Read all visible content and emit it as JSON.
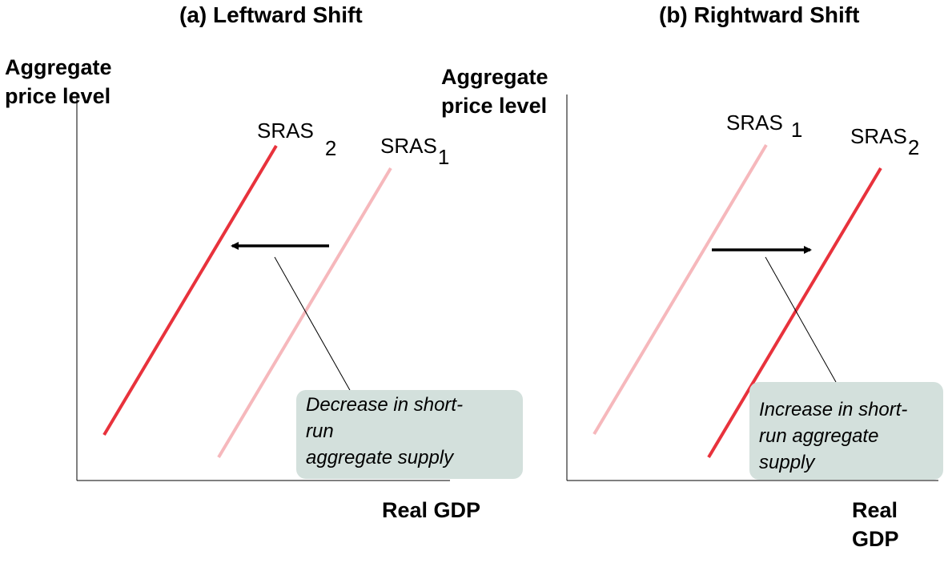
{
  "panels": [
    {
      "title": "(a) Leftward Shift",
      "y_axis_label": [
        "Aggregate",
        "price level"
      ],
      "x_axis_label": [
        "Real GDP"
      ],
      "curves": [
        {
          "label": "SRAS",
          "subscript": "2",
          "color": "#e8323c",
          "style": "dark"
        },
        {
          "label": "SRAS",
          "subscript": "1",
          "color": "#f6b8bc",
          "style": "light"
        }
      ],
      "shift_direction": "left",
      "callout": [
        "Decrease in short-",
        "run",
        "aggregate supply"
      ]
    },
    {
      "title": "(b) Rightward Shift",
      "y_axis_label": [
        "Aggregate",
        "price level"
      ],
      "x_axis_label": [
        "Real",
        "GDP"
      ],
      "curves": [
        {
          "label": "SRAS",
          "subscript": "1",
          "color": "#f6b8bc",
          "style": "light"
        },
        {
          "label": "SRAS",
          "subscript": "2",
          "color": "#e8323c",
          "style": "dark"
        }
      ],
      "shift_direction": "right",
      "callout": [
        "Increase in short-",
        "run aggregate",
        "supply"
      ]
    }
  ],
  "colors": {
    "callout_bg": "#d3e0dc",
    "sras_dark": "#e8323c",
    "sras_light": "#f6b8bc"
  }
}
